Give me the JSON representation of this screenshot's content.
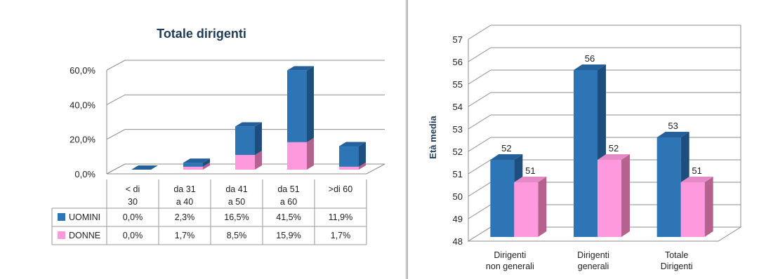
{
  "colors": {
    "uomini_front": "#2E75B6",
    "uomini_top": "#25609A",
    "uomini_side": "#1D4E7E",
    "donne_front": "#FF99DD",
    "donne_top": "#E38BC6",
    "donne_side": "#B5628F"
  },
  "chart_data": [
    {
      "type": "bar",
      "subtype": "stacked-3d",
      "title": "Totale dirigenti",
      "categories": [
        "< di 30",
        "da 31 a 40",
        "da 41 a 50",
        "da 51 a 60",
        ">di 60"
      ],
      "series": [
        {
          "name": "UOMINI",
          "values": [
            0.0,
            2.3,
            16.5,
            41.5,
            11.9
          ],
          "labels": [
            "0,0%",
            "2,3%",
            "16,5%",
            "41,5%",
            "11,9%"
          ]
        },
        {
          "name": "DONNE",
          "values": [
            0.0,
            1.7,
            8.5,
            15.9,
            1.7
          ],
          "labels": [
            "0,0%",
            "1,7%",
            "8,5%",
            "15,9%",
            "1,7%"
          ]
        }
      ],
      "ylim": [
        0,
        60
      ],
      "yticks": [
        "0,0%",
        "20,0%",
        "40,0%",
        "60,0%"
      ],
      "legend": "data-table",
      "grid": true
    },
    {
      "type": "bar",
      "subtype": "clustered-3d",
      "title": "",
      "ylabel": "Età media",
      "categories": [
        "Dirigenti non generali",
        "Dirigenti generali",
        "Totale Dirigenti"
      ],
      "series": [
        {
          "name": "",
          "values": [
            52,
            56,
            53
          ],
          "color": "#2E75B6"
        },
        {
          "name": "",
          "values": [
            51,
            52,
            51
          ],
          "color": "#FF99DD"
        }
      ],
      "ylim": [
        48,
        57
      ],
      "yticks": [
        "48",
        "49",
        "50",
        "51",
        "52",
        "53",
        "54",
        "55",
        "56",
        "57"
      ],
      "grid": true
    }
  ]
}
